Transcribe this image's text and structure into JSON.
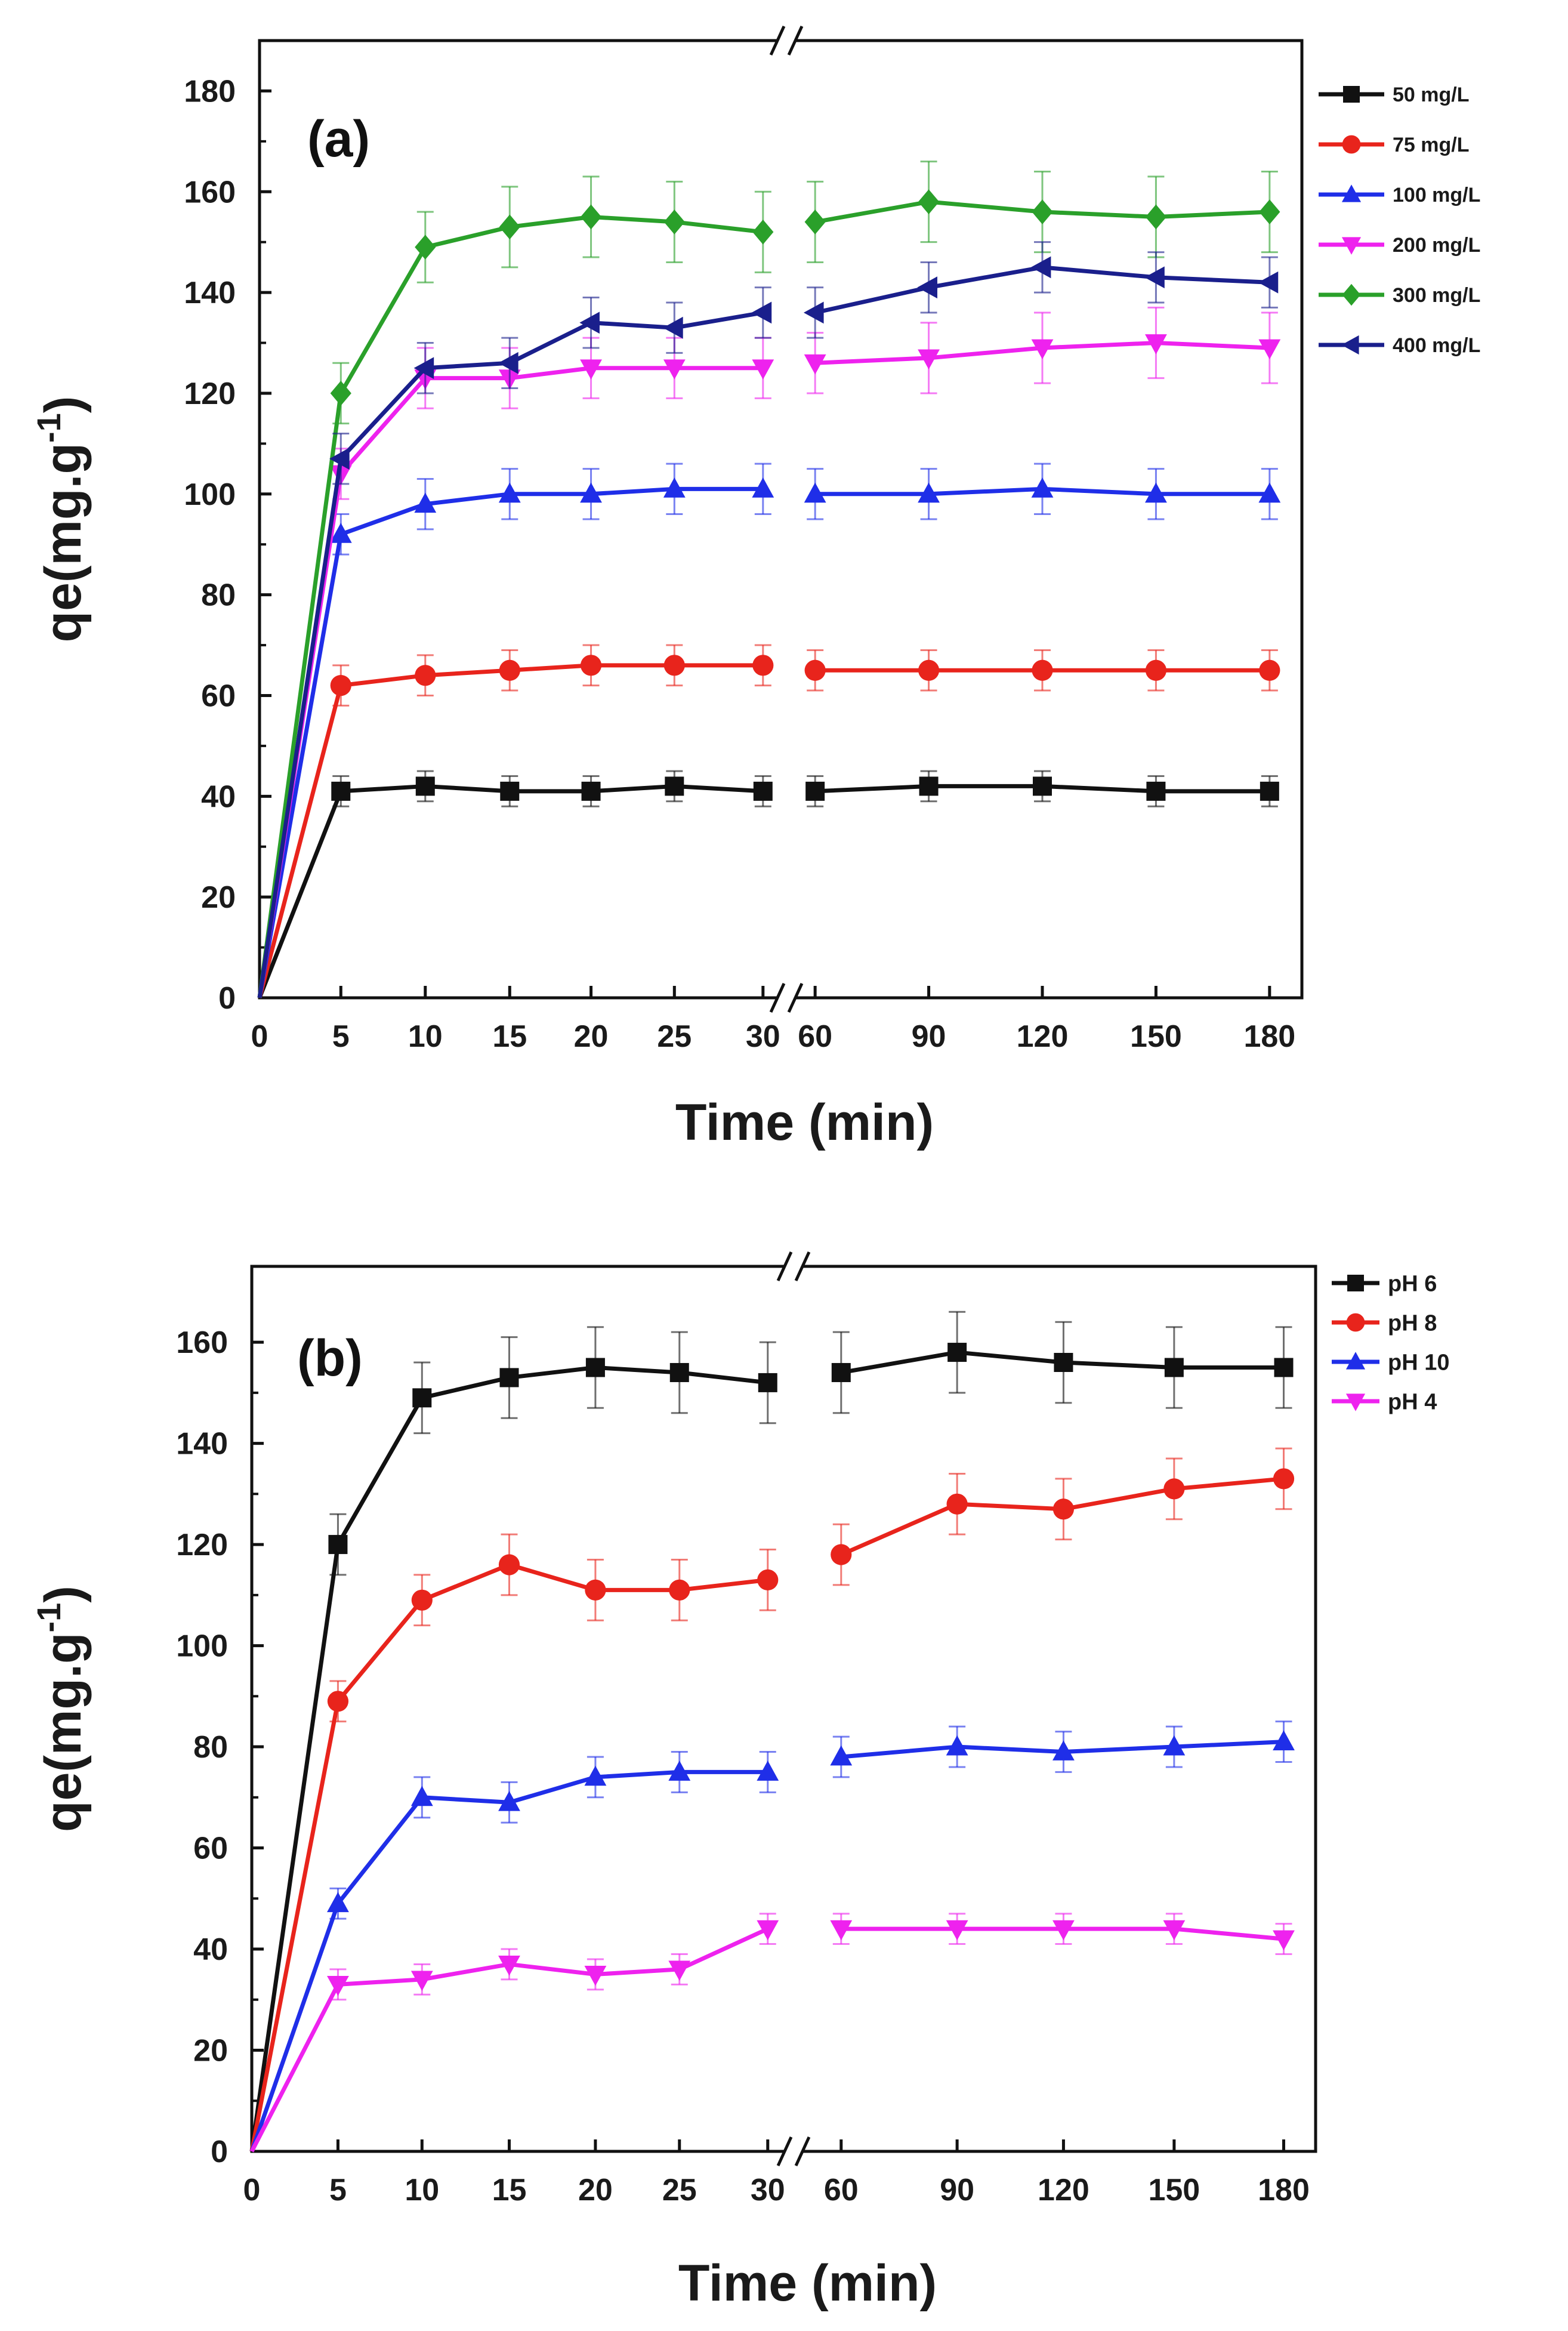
{
  "chart_data": [
    {
      "type": "line",
      "panel_label": "(a)",
      "xlabel": "Time (min)",
      "ylabel": "qe(mg.g",
      "ylabel_sup": "-1",
      "ylabel_close": ")",
      "axis_break": true,
      "x": [
        0,
        5,
        10,
        15,
        20,
        25,
        30,
        60,
        90,
        120,
        150,
        180
      ],
      "x_tick_labels": [
        "0",
        "5",
        "10",
        "15",
        "20",
        "25",
        "30",
        "60",
        "90",
        "120",
        "150",
        "180"
      ],
      "ylim": [
        0,
        190
      ],
      "y_ticks": [
        0,
        20,
        40,
        60,
        80,
        100,
        120,
        140,
        160,
        180
      ],
      "y_tick_labels": [
        "0",
        "20",
        "40",
        "60",
        "80",
        "100",
        "120",
        "140",
        "160",
        "180"
      ],
      "legend_position": "right",
      "series": [
        {
          "name": "50 mg/L",
          "color": "#111111",
          "marker": "square",
          "values": [
            0,
            41,
            42,
            41,
            41,
            42,
            41,
            41,
            42,
            42,
            41,
            41
          ],
          "errors": [
            0,
            3,
            3,
            3,
            3,
            3,
            3,
            3,
            3,
            3,
            3,
            3
          ]
        },
        {
          "name": "75 mg/L",
          "color": "#e8241c",
          "marker": "circle",
          "values": [
            0,
            62,
            64,
            65,
            66,
            66,
            66,
            65,
            65,
            65,
            65,
            65
          ],
          "errors": [
            0,
            4,
            4,
            4,
            4,
            4,
            4,
            4,
            4,
            4,
            4,
            4
          ]
        },
        {
          "name": "100 mg/L",
          "color": "#1f2ee8",
          "marker": "triangle-up",
          "values": [
            0,
            92,
            98,
            100,
            100,
            101,
            101,
            100,
            100,
            101,
            100,
            100
          ],
          "errors": [
            0,
            4,
            5,
            5,
            5,
            5,
            5,
            5,
            5,
            5,
            5,
            5
          ]
        },
        {
          "name": "200 mg/L",
          "color": "#ee22ee",
          "marker": "triangle-down",
          "values": [
            0,
            104,
            123,
            123,
            125,
            125,
            125,
            126,
            127,
            129,
            130,
            129
          ],
          "errors": [
            0,
            5,
            6,
            6,
            6,
            6,
            6,
            6,
            7,
            7,
            7,
            7
          ]
        },
        {
          "name": "300 mg/L",
          "color": "#2aa02a",
          "marker": "diamond",
          "values": [
            0,
            120,
            149,
            153,
            155,
            154,
            152,
            154,
            158,
            156,
            155,
            156
          ],
          "errors": [
            0,
            6,
            7,
            8,
            8,
            8,
            8,
            8,
            8,
            8,
            8,
            8
          ]
        },
        {
          "name": "400 mg/L",
          "color": "#1a1f8c",
          "marker": "triangle-left",
          "values": [
            0,
            107,
            125,
            126,
            134,
            133,
            136,
            136,
            141,
            145,
            143,
            142
          ],
          "errors": [
            0,
            5,
            5,
            5,
            5,
            5,
            5,
            5,
            5,
            5,
            5,
            5
          ]
        }
      ]
    },
    {
      "type": "line",
      "panel_label": "(b)",
      "xlabel": "Time (min)",
      "ylabel": "qe(mg.g",
      "ylabel_sup": "-1",
      "ylabel_close": ")",
      "axis_break": true,
      "x": [
        0,
        5,
        10,
        15,
        20,
        25,
        30,
        60,
        90,
        120,
        150,
        180
      ],
      "x_tick_labels": [
        "0",
        "5",
        "10",
        "15",
        "20",
        "25",
        "30",
        "60",
        "90",
        "120",
        "150",
        "180"
      ],
      "ylim": [
        0,
        175
      ],
      "y_ticks": [
        0,
        20,
        40,
        60,
        80,
        100,
        120,
        140,
        160
      ],
      "y_tick_labels": [
        "0",
        "20",
        "40",
        "60",
        "80",
        "100",
        "120",
        "140",
        "160"
      ],
      "legend_position": "right",
      "series": [
        {
          "name": "pH 6",
          "color": "#111111",
          "marker": "square",
          "values": [
            0,
            120,
            149,
            153,
            155,
            154,
            152,
            154,
            158,
            156,
            155,
            155
          ],
          "errors": [
            0,
            6,
            7,
            8,
            8,
            8,
            8,
            8,
            8,
            8,
            8,
            8
          ]
        },
        {
          "name": "pH 8",
          "color": "#e8241c",
          "marker": "circle",
          "values": [
            0,
            89,
            109,
            116,
            111,
            111,
            113,
            118,
            128,
            127,
            131,
            133
          ],
          "errors": [
            0,
            4,
            5,
            6,
            6,
            6,
            6,
            6,
            6,
            6,
            6,
            6
          ]
        },
        {
          "name": "pH 10",
          "color": "#1f2ee8",
          "marker": "triangle-up",
          "values": [
            0,
            49,
            70,
            69,
            74,
            75,
            75,
            78,
            80,
            79,
            80,
            81
          ],
          "errors": [
            0,
            3,
            4,
            4,
            4,
            4,
            4,
            4,
            4,
            4,
            4,
            4
          ]
        },
        {
          "name": "pH 4",
          "color": "#ee22ee",
          "marker": "triangle-down",
          "values": [
            0,
            33,
            34,
            37,
            35,
            36,
            44,
            44,
            44,
            44,
            44,
            42
          ],
          "errors": [
            0,
            3,
            3,
            3,
            3,
            3,
            3,
            3,
            3,
            3,
            3,
            3
          ]
        }
      ]
    }
  ]
}
